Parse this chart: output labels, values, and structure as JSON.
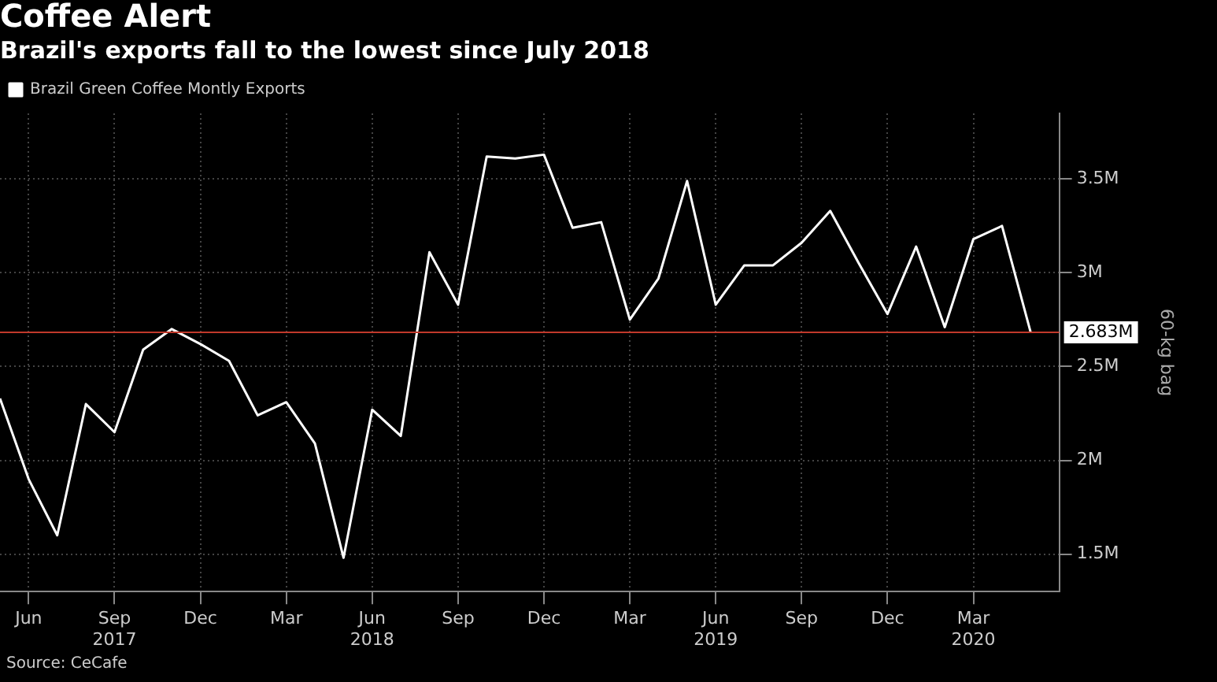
{
  "chart_data": {
    "type": "line",
    "title": "Coffee Alert",
    "subtitle": "Brazil's exports fall to the lowest since July 2018",
    "ylabel": "60-kg bag",
    "x": [
      "2017-05",
      "2017-06",
      "2017-07",
      "2017-08",
      "2017-09",
      "2017-10",
      "2017-11",
      "2017-12",
      "2018-01",
      "2018-02",
      "2018-03",
      "2018-04",
      "2018-05",
      "2018-06",
      "2018-07",
      "2018-08",
      "2018-09",
      "2018-10",
      "2018-11",
      "2018-12",
      "2019-01",
      "2019-02",
      "2019-03",
      "2019-04",
      "2019-05",
      "2019-06",
      "2019-07",
      "2019-08",
      "2019-09",
      "2019-10",
      "2019-11",
      "2019-12",
      "2020-01",
      "2020-02",
      "2020-03",
      "2020-04",
      "2020-05"
    ],
    "series": [
      {
        "name": "Brazil Green Coffee Montly Exports",
        "color": "#ffffff",
        "values": [
          2.33,
          1.9,
          1.6,
          2.3,
          2.15,
          2.59,
          2.7,
          2.62,
          2.53,
          2.24,
          2.31,
          2.09,
          1.48,
          2.27,
          2.13,
          3.11,
          2.83,
          3.62,
          3.61,
          3.63,
          3.24,
          3.27,
          2.75,
          2.97,
          3.49,
          2.83,
          3.04,
          3.04,
          3.16,
          3.33,
          3.05,
          2.78,
          3.14,
          2.71,
          3.18,
          3.25,
          2.683
        ]
      }
    ],
    "xlim": [
      "2017-05",
      "2020-06"
    ],
    "xticks": [
      {
        "value": "2017-06",
        "label": "Jun"
      },
      {
        "value": "2017-09",
        "label": "Sep\n2017"
      },
      {
        "value": "2017-12",
        "label": "Dec"
      },
      {
        "value": "2018-03",
        "label": "Mar"
      },
      {
        "value": "2018-06",
        "label": "Jun\n2018"
      },
      {
        "value": "2018-09",
        "label": "Sep"
      },
      {
        "value": "2018-12",
        "label": "Dec"
      },
      {
        "value": "2019-03",
        "label": "Mar"
      },
      {
        "value": "2019-06",
        "label": "Jun\n2019"
      },
      {
        "value": "2019-09",
        "label": "Sep"
      },
      {
        "value": "2019-12",
        "label": "Dec"
      },
      {
        "value": "2020-03",
        "label": "Mar\n2020"
      }
    ],
    "ylim": [
      1.3,
      3.85
    ],
    "yticks": [
      {
        "value": 1.5,
        "label": "1.5M"
      },
      {
        "value": 2,
        "label": "2M"
      },
      {
        "value": 2.5,
        "label": "2.5M"
      },
      {
        "value": 3,
        "label": "3M"
      },
      {
        "value": 3.5,
        "label": "3.5M"
      }
    ],
    "ref_lines": [
      {
        "axis": "y",
        "value": 2.683,
        "label": "2.683M",
        "color": "#c0392b"
      }
    ],
    "annotations": [
      "Source: CeCafe"
    ],
    "grid": true,
    "legend": "top left",
    "marker": "none",
    "line_style": "solid"
  }
}
